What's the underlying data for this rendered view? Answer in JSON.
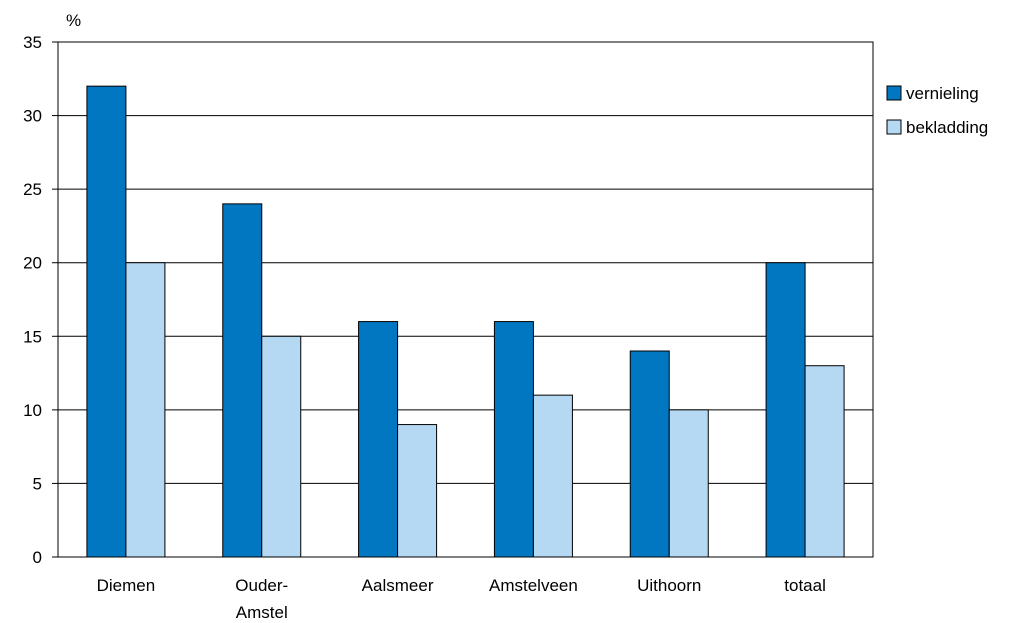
{
  "chart_data": {
    "type": "bar",
    "ylabel": "%",
    "categories": [
      [
        "Diemen"
      ],
      [
        "Ouder-",
        "Amstel"
      ],
      [
        "Aalsmeer"
      ],
      [
        "Amstelveen"
      ],
      [
        "Uithoorn"
      ],
      [
        "totaal"
      ]
    ],
    "series": [
      {
        "name": "vernieling",
        "color": "#0077c0",
        "values": [
          32,
          24,
          16,
          16,
          14,
          20
        ]
      },
      {
        "name": "bekladding",
        "color": "#b5d9f3",
        "values": [
          20,
          15,
          9,
          11,
          10,
          13
        ]
      }
    ],
    "ylim": [
      0,
      35
    ],
    "yticks": [
      0,
      5,
      10,
      15,
      20,
      25,
      30,
      35
    ],
    "grid": true,
    "legend_position": "right"
  }
}
